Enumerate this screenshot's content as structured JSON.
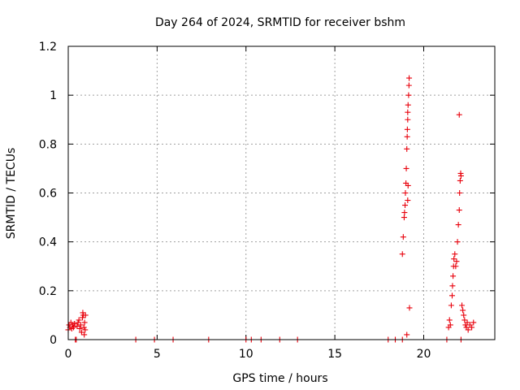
{
  "chart_data": {
    "type": "scatter",
    "title": "Day 264 of 2024, SRMTID for receiver bshm",
    "xlabel": "GPS time / hours",
    "ylabel": "SRMTID / TECUs",
    "xlim": [
      0,
      24
    ],
    "ylim": [
      0,
      1.2
    ],
    "x_ticks": [
      0,
      5,
      10,
      15,
      20
    ],
    "y_ticks": [
      0,
      0.2,
      0.4,
      0.6,
      0.8,
      1,
      1.2
    ],
    "x_tick_labels": [
      "0",
      "5",
      "10",
      "15",
      "20"
    ],
    "y_tick_labels": [
      "0",
      "0.2",
      "0.4",
      "0.6",
      "0.8",
      "1",
      "1.2"
    ],
    "grid": true,
    "marker": "+",
    "color": "#e8000b",
    "points": [
      [
        0.0,
        0.04
      ],
      [
        0.05,
        0.06
      ],
      [
        0.1,
        0.05
      ],
      [
        0.15,
        0.07
      ],
      [
        0.2,
        0.045
      ],
      [
        0.25,
        0.06
      ],
      [
        0.3,
        0.05
      ],
      [
        0.35,
        0.065
      ],
      [
        0.4,
        0.0
      ],
      [
        0.45,
        0.0
      ],
      [
        0.5,
        0.055
      ],
      [
        0.55,
        0.07
      ],
      [
        0.6,
        0.08
      ],
      [
        0.65,
        0.045
      ],
      [
        0.7,
        0.06
      ],
      [
        0.75,
        0.03
      ],
      [
        0.8,
        0.09
      ],
      [
        0.82,
        0.11
      ],
      [
        0.85,
        0.1
      ],
      [
        0.88,
        0.05
      ],
      [
        0.9,
        0.02
      ],
      [
        0.92,
        0.07
      ],
      [
        0.95,
        0.04
      ],
      [
        0.97,
        0.1
      ],
      [
        3.8,
        0.0
      ],
      [
        4.85,
        0.0
      ],
      [
        5.9,
        0.0
      ],
      [
        7.9,
        0.0
      ],
      [
        10.0,
        0.0
      ],
      [
        10.3,
        0.0
      ],
      [
        10.85,
        0.0
      ],
      [
        11.9,
        0.0
      ],
      [
        12.9,
        0.0
      ],
      [
        18.0,
        0.0
      ],
      [
        18.4,
        0.0
      ],
      [
        18.8,
        0.0
      ],
      [
        18.8,
        0.35
      ],
      [
        18.85,
        0.42
      ],
      [
        18.9,
        0.5
      ],
      [
        18.92,
        0.52
      ],
      [
        18.95,
        0.55
      ],
      [
        18.97,
        0.6
      ],
      [
        19.0,
        0.64
      ],
      [
        19.02,
        0.7
      ],
      [
        19.05,
        0.78
      ],
      [
        19.07,
        0.83
      ],
      [
        19.08,
        0.86
      ],
      [
        19.1,
        0.9
      ],
      [
        19.1,
        0.93
      ],
      [
        19.12,
        0.96
      ],
      [
        19.15,
        1.0
      ],
      [
        19.17,
        1.04
      ],
      [
        19.18,
        1.07
      ],
      [
        19.2,
        0.13
      ],
      [
        19.05,
        0.02
      ],
      [
        19.1,
        0.57
      ],
      [
        19.12,
        0.63
      ],
      [
        21.3,
        0.0
      ],
      [
        21.4,
        0.05
      ],
      [
        21.45,
        0.08
      ],
      [
        21.5,
        0.06
      ],
      [
        21.55,
        0.14
      ],
      [
        21.6,
        0.18
      ],
      [
        21.62,
        0.22
      ],
      [
        21.65,
        0.26
      ],
      [
        21.68,
        0.3
      ],
      [
        21.7,
        0.33
      ],
      [
        21.75,
        0.35
      ],
      [
        21.8,
        0.3
      ],
      [
        21.85,
        0.32
      ],
      [
        21.9,
        0.4
      ],
      [
        21.95,
        0.47
      ],
      [
        22.0,
        0.53
      ],
      [
        22.02,
        0.6
      ],
      [
        22.05,
        0.65
      ],
      [
        22.08,
        0.68
      ],
      [
        22.1,
        0.67
      ],
      [
        22.0,
        0.92
      ],
      [
        22.1,
        0.0
      ],
      [
        22.15,
        0.14
      ],
      [
        22.2,
        0.12
      ],
      [
        22.25,
        0.1
      ],
      [
        22.3,
        0.08
      ],
      [
        22.35,
        0.06
      ],
      [
        22.4,
        0.05
      ],
      [
        22.45,
        0.07
      ],
      [
        22.5,
        0.04
      ],
      [
        22.6,
        0.06
      ],
      [
        22.7,
        0.05
      ],
      [
        22.8,
        0.07
      ]
    ]
  }
}
